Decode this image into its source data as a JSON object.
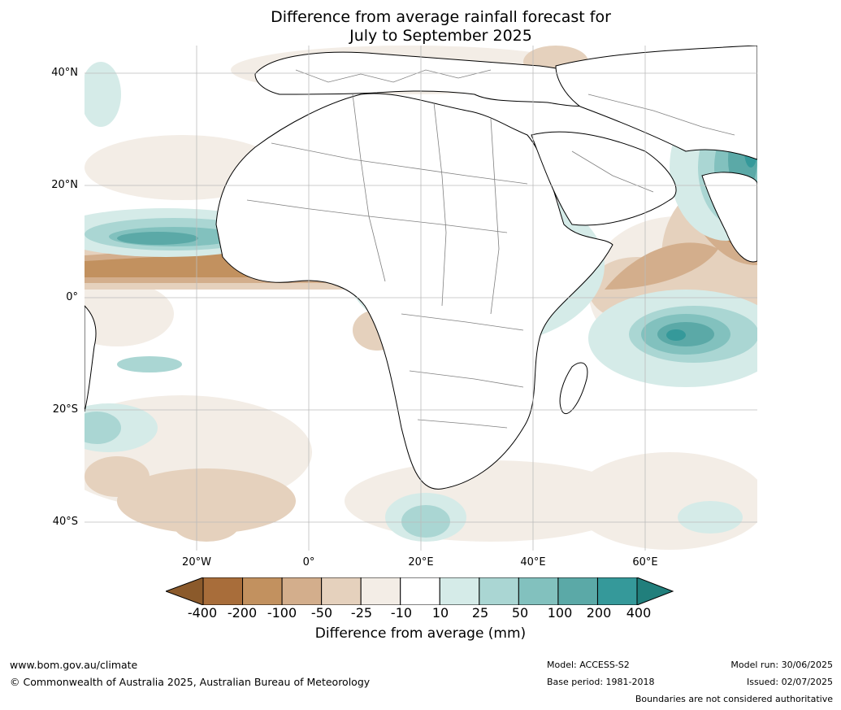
{
  "title": {
    "line1": "Difference from average rainfall forecast for",
    "line2": "July to September 2025"
  },
  "map": {
    "lat_labels": [
      "40°N",
      "20°N",
      "0°",
      "20°S",
      "40°S"
    ],
    "lon_labels": [
      "20°W",
      "0°",
      "20°E",
      "40°E",
      "60°E"
    ],
    "extent": {
      "lon": [
        -40,
        80
      ],
      "lat": [
        -45,
        45
      ]
    }
  },
  "colorbar": {
    "ticks": [
      "-400",
      "-200",
      "-100",
      "-50",
      "-25",
      "-10",
      "10",
      "25",
      "50",
      "100",
      "200",
      "400"
    ],
    "colors": [
      "#a86d3a",
      "#c2915f",
      "#d3ae8c",
      "#e5d1bd",
      "#f3ede6",
      "#ffffff",
      "#d5ebe8",
      "#aad6d3",
      "#82c1be",
      "#5ba9a7",
      "#35999a"
    ],
    "extend_low": "#8b5a2b",
    "extend_high": "#217f7c",
    "label": "Difference from average (mm)"
  },
  "footer": {
    "website": "www.bom.gov.au/climate",
    "copyright": "© Commonwealth of Australia 2025, Australian Bureau of Meteorology",
    "model": "Model: ACCESS-S2",
    "base_period": "Base period: 1981-2018",
    "model_run": "Model run: 30/06/2025",
    "issued": "Issued: 02/07/2025",
    "disclaimer": "Boundaries are not considered authoritative"
  }
}
